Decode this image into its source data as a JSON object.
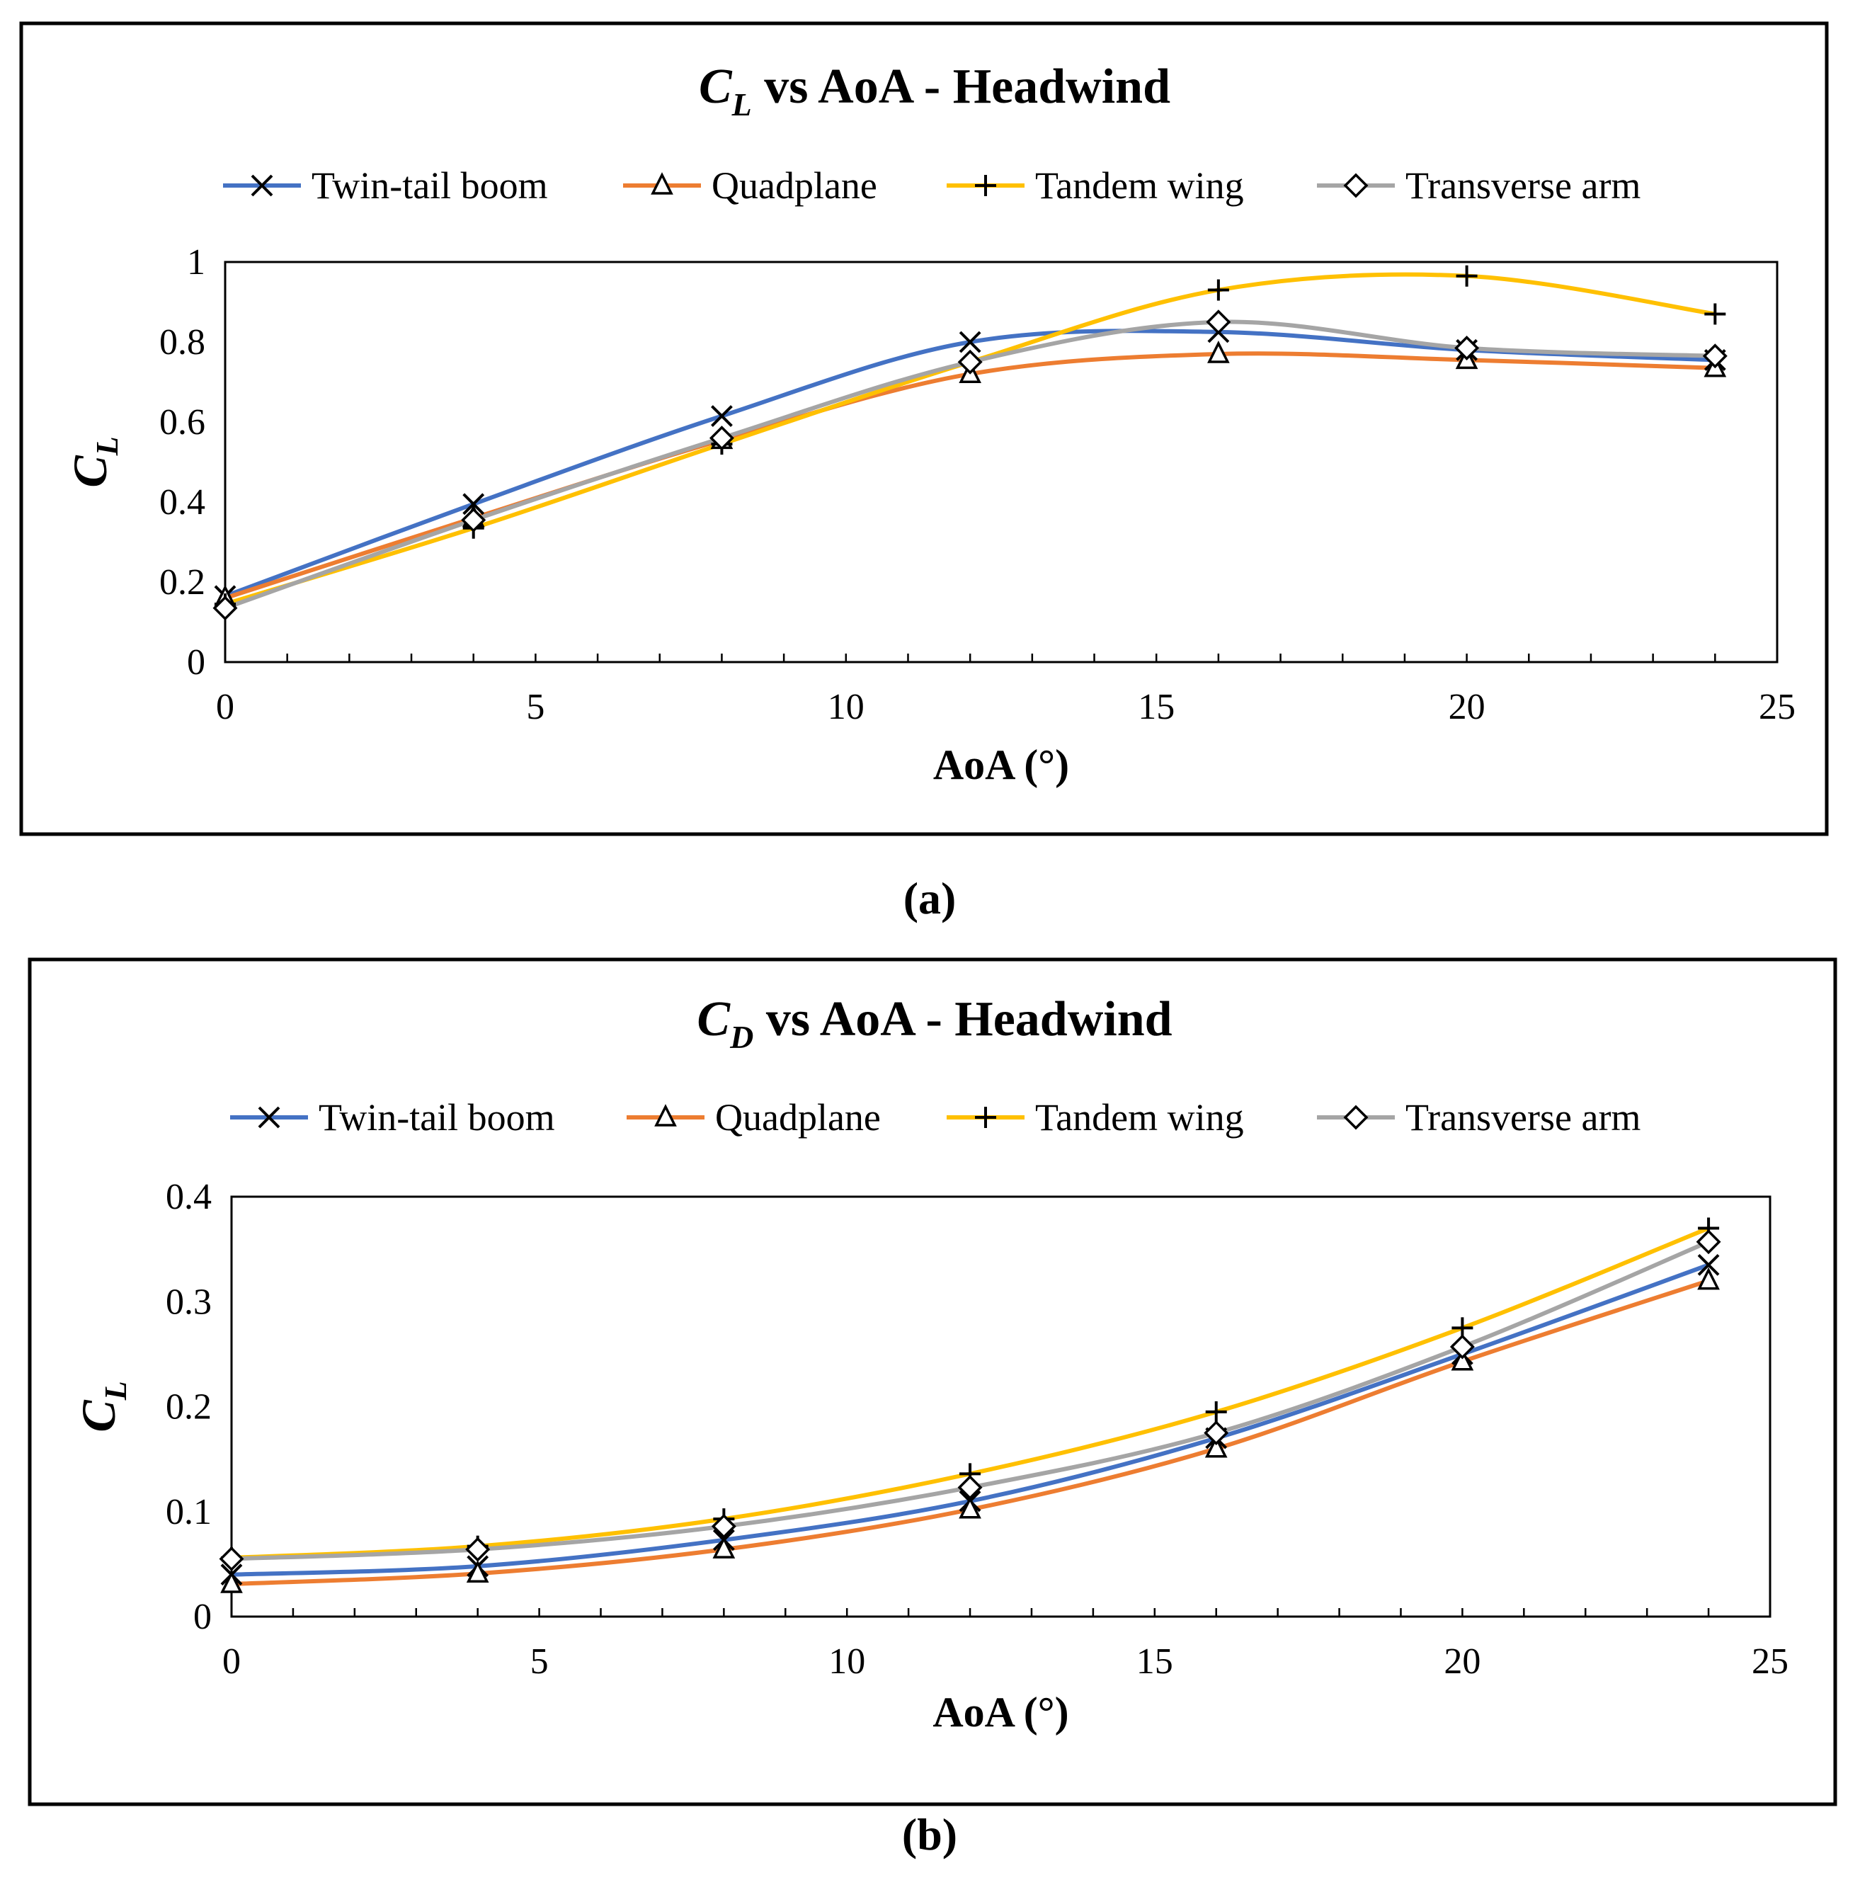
{
  "chart_data": [
    {
      "type": "line",
      "panel_label": "(a)",
      "title": {
        "main": "C",
        "sub": "L",
        "rest": " vs AoA - Headwind"
      },
      "xlabel": "AoA (°)",
      "ylabel": {
        "main": "C",
        "sub": "L"
      },
      "xlim": [
        0,
        25
      ],
      "ylim": [
        0,
        1
      ],
      "xticks": [
        "0",
        "5",
        "10",
        "15",
        "20",
        "25"
      ],
      "xtick_values": [
        0,
        5,
        10,
        15,
        20,
        25
      ],
      "yticks": [
        "0",
        "0.2",
        "0.4",
        "0.6",
        "0.8",
        "1"
      ],
      "ytick_values": [
        0,
        0.2,
        0.4,
        0.6,
        0.8,
        1
      ],
      "x": [
        0,
        4,
        8,
        12,
        16,
        20,
        24
      ],
      "legend_position": "top",
      "series": [
        {
          "name": "Twin-tail boom",
          "color": "#4472C4",
          "marker": "x",
          "values": [
            0.165,
            0.395,
            0.615,
            0.8,
            0.825,
            0.78,
            0.755
          ]
        },
        {
          "name": "Quadplane",
          "color": "#ED7D31",
          "marker": "triangle",
          "values": [
            0.16,
            0.36,
            0.555,
            0.72,
            0.77,
            0.755,
            0.735
          ]
        },
        {
          "name": "Tandem wing",
          "color": "#FFC000",
          "marker": "plus",
          "values": [
            0.145,
            0.335,
            0.545,
            0.75,
            0.93,
            0.965,
            0.87
          ]
        },
        {
          "name": "Transverse arm",
          "color": "#A5A5A5",
          "marker": "diamond",
          "values": [
            0.135,
            0.355,
            0.56,
            0.75,
            0.85,
            0.785,
            0.765
          ]
        }
      ]
    },
    {
      "type": "line",
      "panel_label": "(b)",
      "title": {
        "main": "C",
        "sub": "D",
        "rest": " vs AoA - Headwind"
      },
      "xlabel": "AoA (°)",
      "ylabel": {
        "main": "C",
        "sub": "L"
      },
      "xlim": [
        0,
        25
      ],
      "ylim": [
        0,
        0.4
      ],
      "xticks": [
        "0",
        "5",
        "10",
        "15",
        "20",
        "25"
      ],
      "xtick_values": [
        0,
        5,
        10,
        15,
        20,
        25
      ],
      "yticks": [
        "0",
        "0.1",
        "0.2",
        "0.3",
        "0.4"
      ],
      "ytick_values": [
        0,
        0.1,
        0.2,
        0.3,
        0.4
      ],
      "x": [
        0,
        4,
        8,
        12,
        16,
        20,
        24
      ],
      "legend_position": "top",
      "series": [
        {
          "name": "Twin-tail boom",
          "color": "#4472C4",
          "marker": "x",
          "values": [
            0.04,
            0.048,
            0.073,
            0.11,
            0.17,
            0.25,
            0.335
          ]
        },
        {
          "name": "Quadplane",
          "color": "#ED7D31",
          "marker": "triangle",
          "values": [
            0.031,
            0.041,
            0.064,
            0.102,
            0.16,
            0.243,
            0.32
          ]
        },
        {
          "name": "Tandem wing",
          "color": "#FFC000",
          "marker": "plus",
          "values": [
            0.056,
            0.067,
            0.093,
            0.136,
            0.195,
            0.275,
            0.37
          ]
        },
        {
          "name": "Transverse arm",
          "color": "#A5A5A5",
          "marker": "diamond",
          "values": [
            0.055,
            0.064,
            0.086,
            0.123,
            0.175,
            0.257,
            0.357
          ]
        }
      ]
    }
  ]
}
